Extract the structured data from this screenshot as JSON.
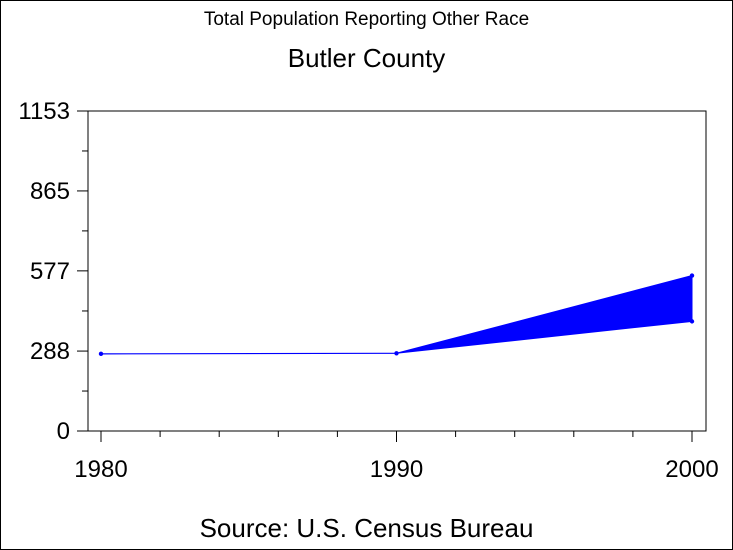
{
  "chart_data": {
    "type": "area",
    "title": "Total Population Reporting Other Race",
    "subtitle": "Butler County",
    "source": "Source: U.S. Census Bureau",
    "x": [
      1980,
      1990,
      2000
    ],
    "x_ticks": [
      "1980",
      "1990",
      "2000"
    ],
    "xlim": [
      1980,
      2000
    ],
    "ylim": [
      0,
      1153
    ],
    "y_ticks": [
      0,
      288,
      577,
      865,
      1153
    ],
    "y_tick_labels": [
      "0",
      "288",
      "577",
      "865",
      "1153"
    ],
    "series": [
      {
        "values": [
          278,
          280,
          395
        ]
      },
      {
        "values": [
          278,
          280,
          560
        ]
      }
    ],
    "band": {
      "from_year": 1990,
      "to_year": 2000
    },
    "grid": false,
    "color": "#0000ff"
  }
}
